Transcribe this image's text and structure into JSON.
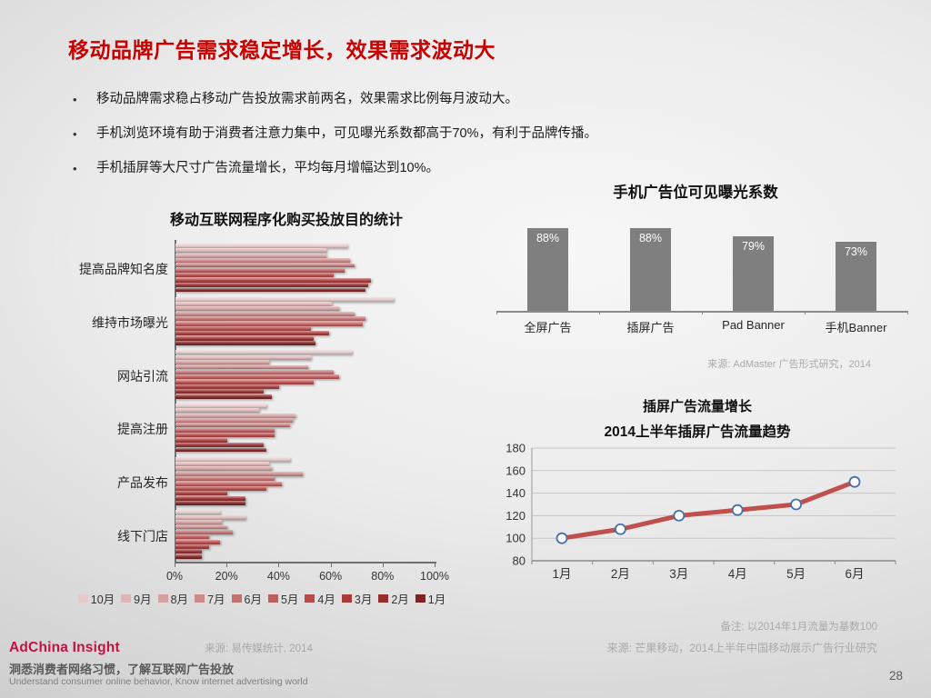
{
  "slide": {
    "title": "移动品牌广告需求稳定增长，效果需求波动大",
    "bullets": [
      "移动品牌需求稳占移动广告投放需求前两名，效果需求比例每月波动大。",
      "手机浏览环境有助于消费者注意力集中，可见曝光系数都高于70%，有利于品牌传播。",
      "手机插屏等大尺寸广告流量增长，平均每月增幅达到10%。"
    ],
    "bullet_glyph": "•",
    "page_number": "28"
  },
  "chart_data": [
    {
      "id": "purpose",
      "type": "bar",
      "orientation": "horizontal",
      "title": "移动互联网程序化购买投放目的统计",
      "categories": [
        "提高品牌知名度",
        "维持市场曝光",
        "网站引流",
        "提高注册",
        "产品发布",
        "线下门店"
      ],
      "series": [
        {
          "name": "10月",
          "color": "#e6caca",
          "values": [
            66,
            84,
            68,
            35,
            44,
            17
          ]
        },
        {
          "name": "9月",
          "color": "#deb5b5",
          "values": [
            58,
            60,
            52,
            32,
            36,
            27
          ]
        },
        {
          "name": "8月",
          "color": "#d5a0a0",
          "values": [
            58,
            63,
            36,
            46,
            37,
            18
          ]
        },
        {
          "name": "7月",
          "color": "#cc8a8a",
          "values": [
            67,
            69,
            51,
            45,
            49,
            20
          ]
        },
        {
          "name": "6月",
          "color": "#c47272",
          "values": [
            69,
            73,
            61,
            44,
            38,
            22
          ]
        },
        {
          "name": "5月",
          "color": "#c05d5d",
          "values": [
            65,
            72,
            63,
            38,
            41,
            13
          ]
        },
        {
          "name": "4月",
          "color": "#b84a4a",
          "values": [
            61,
            52,
            53,
            38,
            35,
            17
          ]
        },
        {
          "name": "3月",
          "color": "#aa3a3a",
          "values": [
            75,
            59,
            40,
            20,
            20,
            13
          ]
        },
        {
          "name": "2月",
          "color": "#972e2e",
          "values": [
            74,
            53,
            34,
            34,
            27,
            10
          ]
        },
        {
          "name": "1月",
          "color": "#7f2323",
          "values": [
            73,
            54,
            37,
            35,
            27,
            10
          ]
        }
      ],
      "x_ticks": [
        "0%",
        "20%",
        "40%",
        "60%",
        "80%",
        "100%"
      ],
      "xlim": [
        0,
        100
      ],
      "legend_position": "bottom",
      "source": "来源: 易传媒统计, 2014"
    },
    {
      "id": "exposure",
      "type": "bar",
      "title": "手机广告位可见曝光系数",
      "categories": [
        "全屏广告",
        "插屏广告",
        "Pad Banner",
        "手机Banner"
      ],
      "values": [
        88,
        88,
        79,
        73
      ],
      "value_labels": [
        "88%",
        "88%",
        "79%",
        "73%"
      ],
      "bar_color": "#7f7f7f",
      "label_color": "#ffffff",
      "source": "来源: AdMaster 广告形式研究，2014"
    },
    {
      "id": "traffic",
      "type": "line",
      "heading": "插屏广告流量增长",
      "title": "2014上半年插屏广告流量趋势",
      "categories": [
        "1月",
        "2月",
        "3月",
        "4月",
        "5月",
        "6月"
      ],
      "values": [
        100,
        108,
        120,
        125,
        130,
        150
      ],
      "ylim": [
        80,
        180
      ],
      "y_ticks": [
        80,
        100,
        120,
        140,
        160,
        180
      ],
      "grid": true,
      "line_color": "#c0504d",
      "marker": {
        "fill": "#ffffff",
        "stroke": "#4572a7"
      },
      "note": "备注: 以2014年1月流量为基数100",
      "source": "来源: 芒果移动，2014上半年中国移动展示广告行业研究"
    }
  ],
  "footer": {
    "brand": "AdChina Insight",
    "brand_color": "#c41240",
    "tagline_zh": "洞悉消费者网络习惯，了解互联网广告投放",
    "tagline_en": "Understand consumer online behavior, Know internet advertising world"
  }
}
